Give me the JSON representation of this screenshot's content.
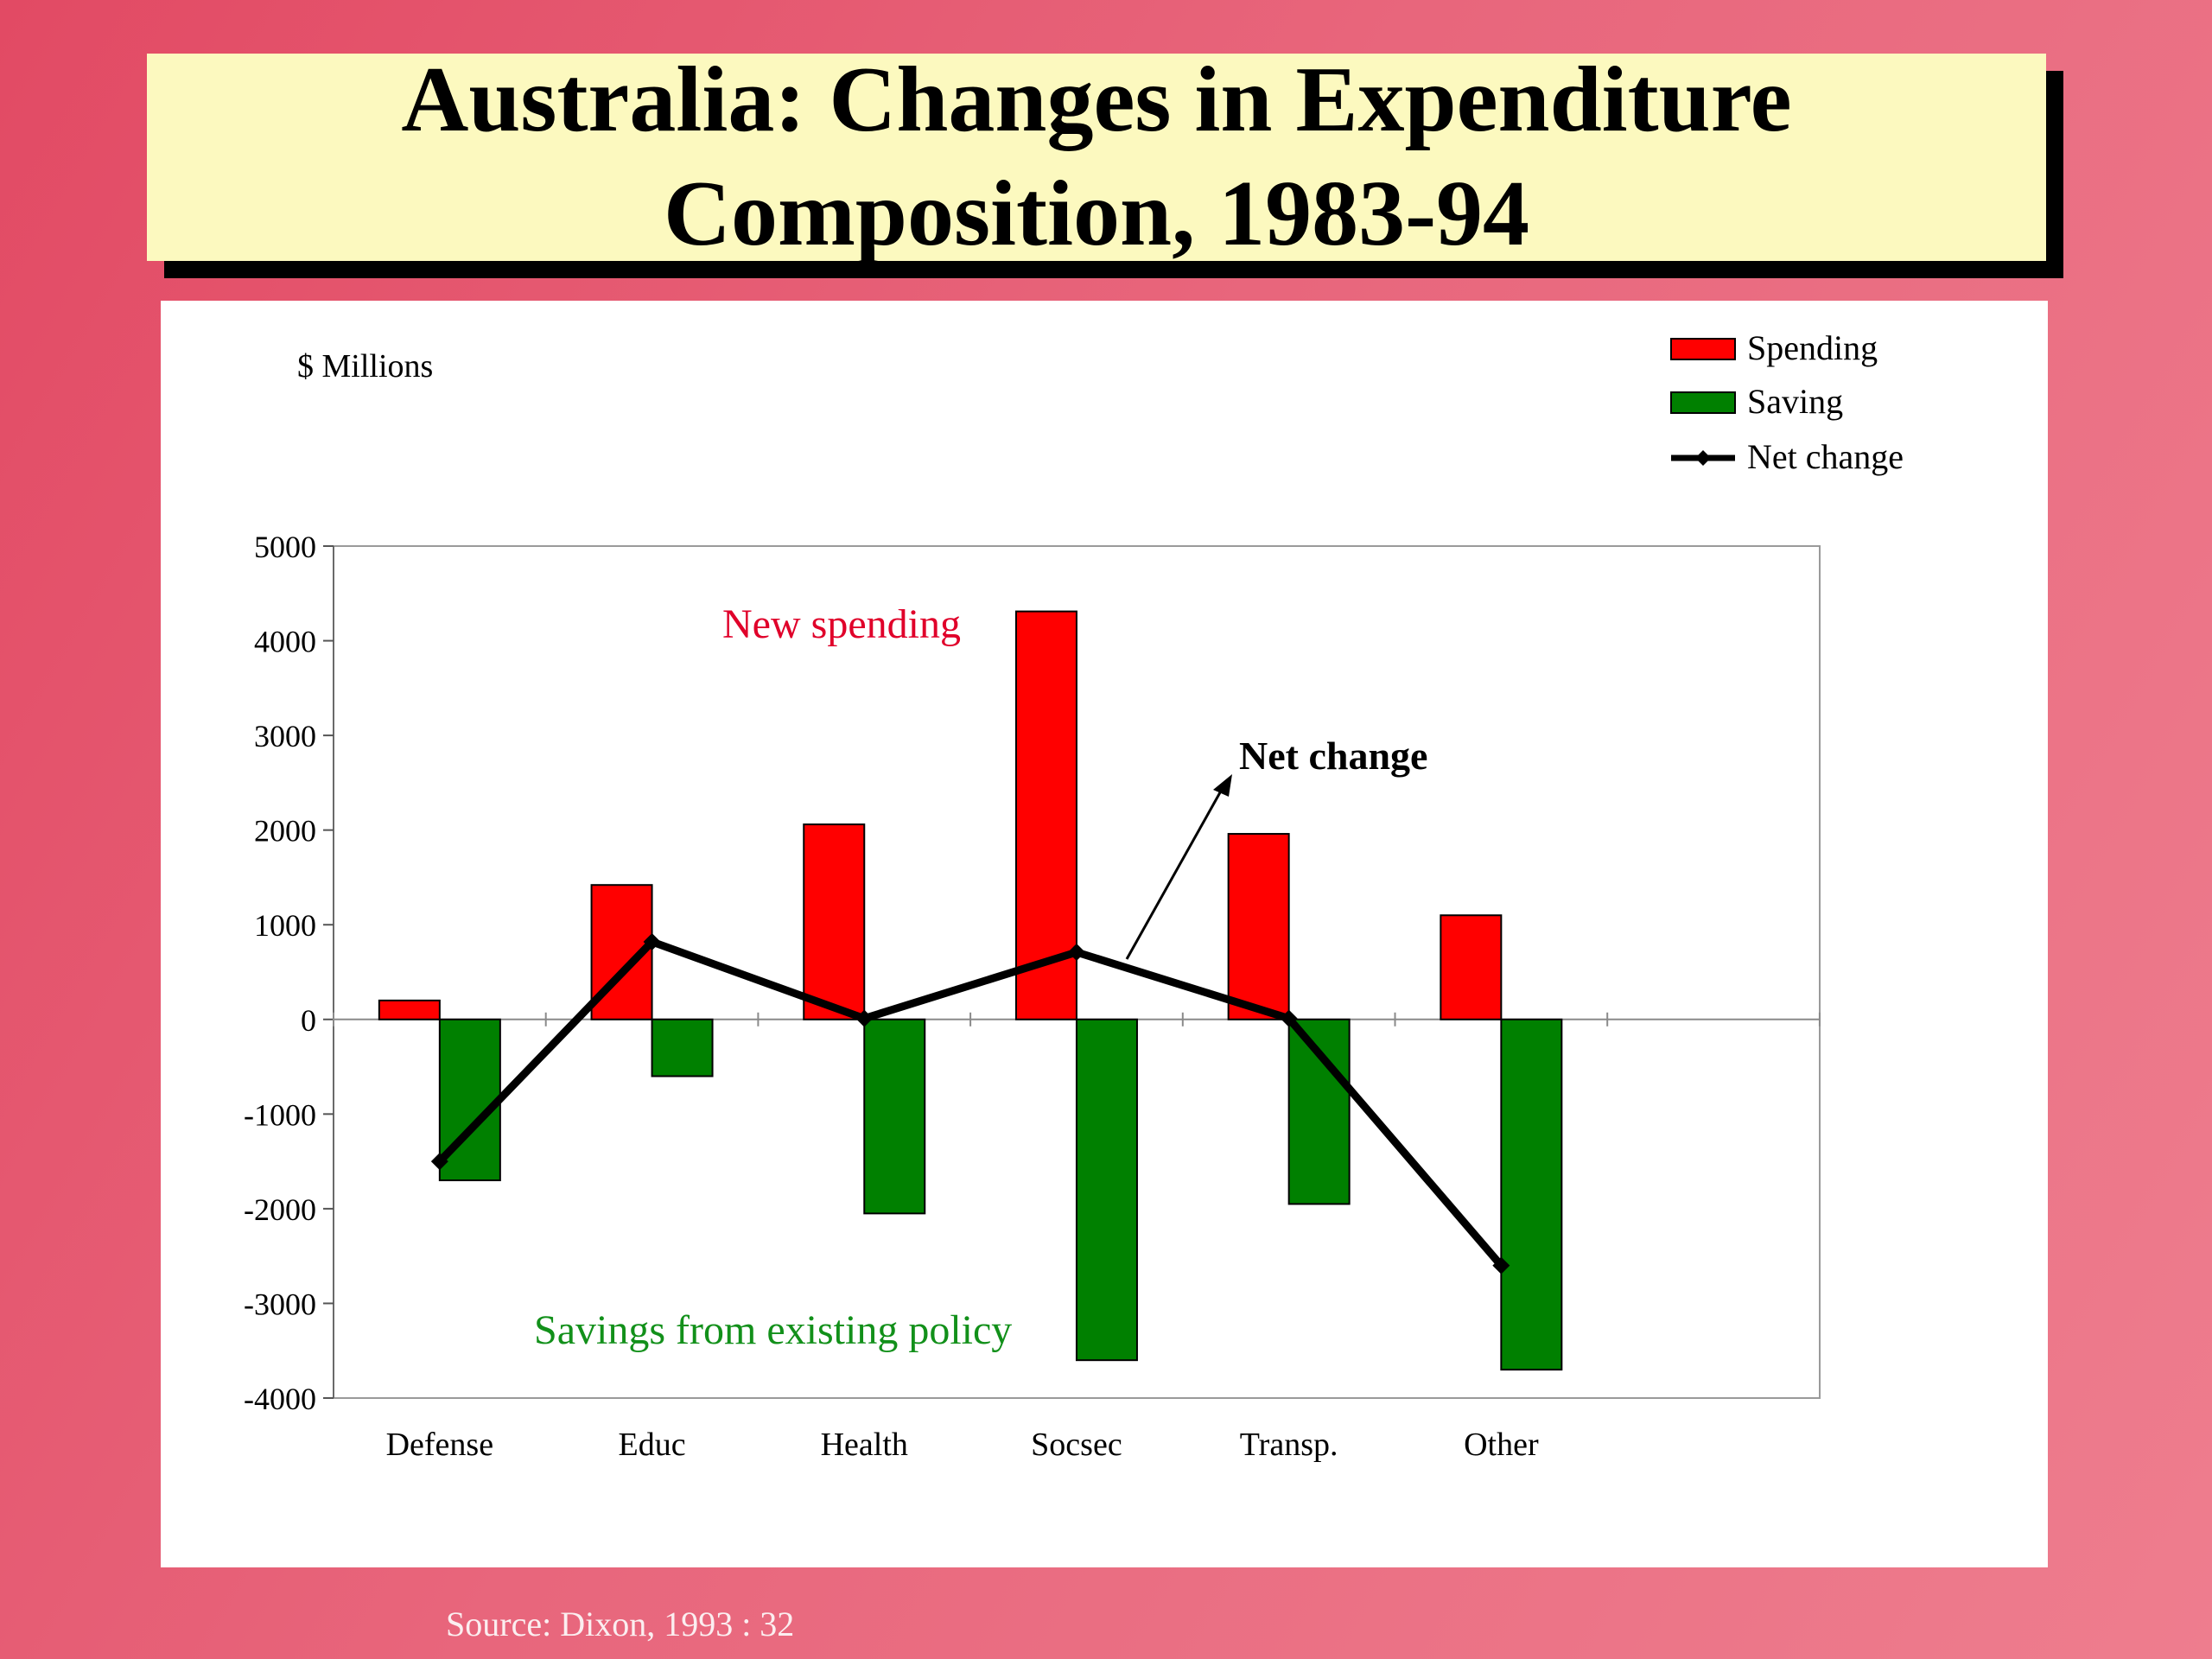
{
  "slide": {
    "title": "Australia: Changes in Expenditure\nComposition, 1983-94",
    "source": "Source: Dixon, 1993 : 32"
  },
  "colors": {
    "spending": "#ff0000",
    "saving": "#008000",
    "net": "#000000",
    "annotation_spending": "#e0002a",
    "annotation_saving": "#12901a"
  },
  "chart_data": {
    "type": "bar",
    "ylabel": "$ Millions",
    "ylim": [
      -4000,
      5000
    ],
    "yticks": [
      5000,
      4000,
      3000,
      2000,
      1000,
      0,
      -1000,
      -2000,
      -3000,
      -4000
    ],
    "categories": [
      "Defense",
      "Educ",
      "Health",
      "Socsec",
      "Transp.",
      "Other"
    ],
    "series": [
      {
        "name": "Spending",
        "type": "bar",
        "values": [
          200,
          1420,
          2060,
          4310,
          1960,
          1100
        ]
      },
      {
        "name": "Saving",
        "type": "bar",
        "values": [
          -1700,
          -600,
          -2050,
          -3600,
          -1950,
          -3700
        ]
      },
      {
        "name": "Net change",
        "type": "line",
        "values": [
          -1500,
          820,
          10,
          710,
          10,
          -2600
        ]
      }
    ],
    "legend_position": "top-right",
    "grid": false,
    "annotations": [
      {
        "text": "New spending",
        "color_key": "annotation_spending"
      },
      {
        "text": "Net change",
        "bold": true,
        "arrow": true
      },
      {
        "text": "Savings from existing policy",
        "color_key": "annotation_saving"
      }
    ]
  }
}
